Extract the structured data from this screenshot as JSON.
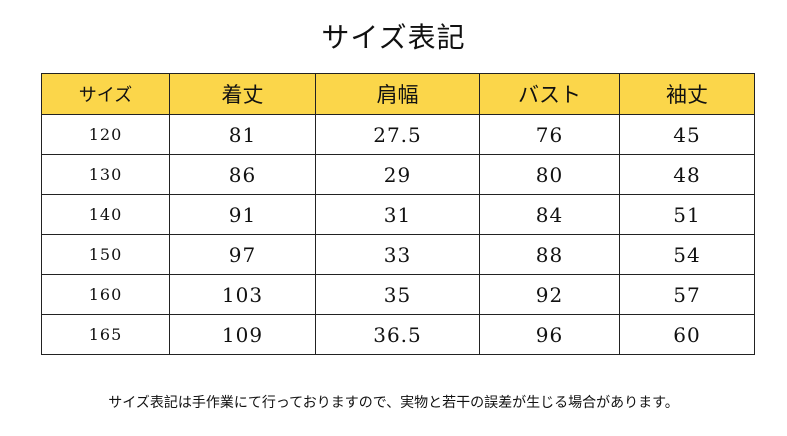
{
  "title": "サイズ表記",
  "table": {
    "headers": [
      "サイズ",
      "着丈",
      "肩幅",
      "バスト",
      "袖丈"
    ],
    "rows": [
      [
        "120",
        "81",
        "27.5",
        "76",
        "45"
      ],
      [
        "130",
        "86",
        "29",
        "80",
        "48"
      ],
      [
        "140",
        "91",
        "31",
        "84",
        "51"
      ],
      [
        "150",
        "97",
        "33",
        "88",
        "54"
      ],
      [
        "160",
        "103",
        "35",
        "92",
        "57"
      ],
      [
        "165",
        "109",
        "36.5",
        "96",
        "60"
      ]
    ]
  },
  "note": "サイズ表記は手作業にて行っておりますので、実物と若干の誤差が生じる場合があります。",
  "colors": {
    "header_background": "#fbd64a",
    "border": "#222222",
    "text": "#111111"
  }
}
